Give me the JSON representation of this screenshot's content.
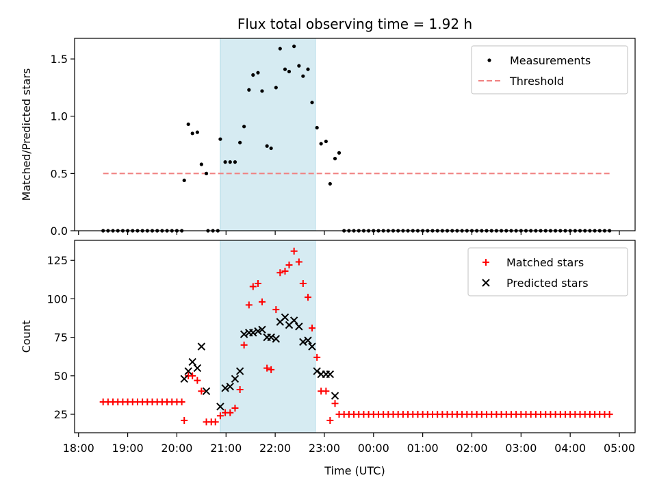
{
  "chart_data": [
    {
      "type": "scatter",
      "title": "Flux total observing time = 1.92 h",
      "xlabel": "",
      "ylabel": "Matched/Predicted stars",
      "xlim": [
        "18:00",
        "05:00"
      ],
      "ylim": [
        0,
        1.68
      ],
      "yticks": [
        0.0,
        0.5,
        1.0,
        1.5
      ],
      "ytick_labels": [
        "0.0",
        "0.5",
        "1.0",
        "1.5"
      ],
      "highlight_span": [
        "20:53",
        "22:49"
      ],
      "legend_position": "top-right",
      "legend": [
        {
          "label": "Measurements",
          "marker": "dot",
          "color": "#000000"
        },
        {
          "label": "Threshold",
          "marker": "dashed-line",
          "color": "#f08080"
        }
      ],
      "threshold": {
        "value": 0.5,
        "x_start": "18:30",
        "x_end": "04:48"
      },
      "series": [
        {
          "name": "Measurements",
          "color": "#000000",
          "points": [
            [
              "18:30",
              0
            ],
            [
              "18:36",
              0
            ],
            [
              "18:42",
              0
            ],
            [
              "18:48",
              0
            ],
            [
              "18:54",
              0
            ],
            [
              "19:00",
              0
            ],
            [
              "19:06",
              0
            ],
            [
              "19:12",
              0
            ],
            [
              "19:18",
              0
            ],
            [
              "19:24",
              0
            ],
            [
              "19:30",
              0
            ],
            [
              "19:36",
              0
            ],
            [
              "19:42",
              0
            ],
            [
              "19:48",
              0
            ],
            [
              "19:54",
              0
            ],
            [
              "20:00",
              0
            ],
            [
              "20:06",
              0
            ],
            [
              "20:09",
              0.44
            ],
            [
              "20:14",
              0.93
            ],
            [
              "20:19",
              0.85
            ],
            [
              "20:25",
              0.86
            ],
            [
              "20:30",
              0.58
            ],
            [
              "20:36",
              0.5
            ],
            [
              "20:38",
              0
            ],
            [
              "20:44",
              0
            ],
            [
              "20:50",
              0
            ],
            [
              "20:53",
              0.8
            ],
            [
              "20:59",
              0.6
            ],
            [
              "21:05",
              0.6
            ],
            [
              "21:11",
              0.6
            ],
            [
              "21:17",
              0.77
            ],
            [
              "21:22",
              0.91
            ],
            [
              "21:28",
              1.23
            ],
            [
              "21:33",
              1.36
            ],
            [
              "21:39",
              1.38
            ],
            [
              "21:44",
              1.22
            ],
            [
              "21:50",
              0.74
            ],
            [
              "21:55",
              0.72
            ],
            [
              "22:01",
              1.25
            ],
            [
              "22:06",
              1.59
            ],
            [
              "22:12",
              1.41
            ],
            [
              "22:17",
              1.39
            ],
            [
              "22:23",
              1.61
            ],
            [
              "22:29",
              1.44
            ],
            [
              "22:34",
              1.35
            ],
            [
              "22:40",
              1.41
            ],
            [
              "22:45",
              1.12
            ],
            [
              "22:51",
              0.9
            ],
            [
              "22:56",
              0.76
            ],
            [
              "23:02",
              0.78
            ],
            [
              "23:07",
              0.41
            ],
            [
              "23:13",
              0.63
            ],
            [
              "23:18",
              0.68
            ],
            [
              "23:24",
              0
            ],
            [
              "23:30",
              0
            ],
            [
              "23:36",
              0
            ],
            [
              "23:42",
              0
            ],
            [
              "23:48",
              0
            ],
            [
              "23:54",
              0
            ],
            [
              "00:00",
              0
            ],
            [
              "00:06",
              0
            ],
            [
              "00:12",
              0
            ],
            [
              "00:18",
              0
            ],
            [
              "00:24",
              0
            ],
            [
              "00:30",
              0
            ],
            [
              "00:36",
              0
            ],
            [
              "00:42",
              0
            ],
            [
              "00:48",
              0
            ],
            [
              "00:54",
              0
            ],
            [
              "01:00",
              0
            ],
            [
              "01:06",
              0
            ],
            [
              "01:12",
              0
            ],
            [
              "01:18",
              0
            ],
            [
              "01:24",
              0
            ],
            [
              "01:30",
              0
            ],
            [
              "01:36",
              0
            ],
            [
              "01:42",
              0
            ],
            [
              "01:48",
              0
            ],
            [
              "01:54",
              0
            ],
            [
              "02:00",
              0
            ],
            [
              "02:06",
              0
            ],
            [
              "02:12",
              0
            ],
            [
              "02:18",
              0
            ],
            [
              "02:24",
              0
            ],
            [
              "02:30",
              0
            ],
            [
              "02:36",
              0
            ],
            [
              "02:42",
              0
            ],
            [
              "02:48",
              0
            ],
            [
              "02:54",
              0
            ],
            [
              "03:00",
              0
            ],
            [
              "03:06",
              0
            ],
            [
              "03:12",
              0
            ],
            [
              "03:18",
              0
            ],
            [
              "03:24",
              0
            ],
            [
              "03:30",
              0
            ],
            [
              "03:36",
              0
            ],
            [
              "03:42",
              0
            ],
            [
              "03:48",
              0
            ],
            [
              "03:54",
              0
            ],
            [
              "04:00",
              0
            ],
            [
              "04:06",
              0
            ],
            [
              "04:12",
              0
            ],
            [
              "04:18",
              0
            ],
            [
              "04:24",
              0
            ],
            [
              "04:30",
              0
            ],
            [
              "04:36",
              0
            ],
            [
              "04:42",
              0
            ],
            [
              "04:48",
              0
            ]
          ]
        }
      ]
    },
    {
      "type": "scatter",
      "title": "",
      "xlabel": "Time (UTC)",
      "ylabel": "Count",
      "xlim": [
        "18:00",
        "05:00"
      ],
      "ylim": [
        13,
        138
      ],
      "yticks": [
        25,
        50,
        75,
        100,
        125
      ],
      "ytick_labels": [
        "25",
        "50",
        "75",
        "100",
        "125"
      ],
      "xticks": [
        "18:00",
        "19:00",
        "20:00",
        "21:00",
        "22:00",
        "23:00",
        "00:00",
        "01:00",
        "02:00",
        "03:00",
        "04:00",
        "05:00"
      ],
      "highlight_span": [
        "20:53",
        "22:49"
      ],
      "legend_position": "top-right",
      "legend": [
        {
          "label": "Matched stars",
          "marker": "plus",
          "color": "#ff0000"
        },
        {
          "label": "Predicted stars",
          "marker": "x",
          "color": "#000000"
        }
      ],
      "series": [
        {
          "name": "Matched stars",
          "color": "#ff0000",
          "marker": "plus",
          "points": [
            [
              "18:30",
              33
            ],
            [
              "18:36",
              33
            ],
            [
              "18:42",
              33
            ],
            [
              "18:48",
              33
            ],
            [
              "18:54",
              33
            ],
            [
              "19:00",
              33
            ],
            [
              "19:06",
              33
            ],
            [
              "19:12",
              33
            ],
            [
              "19:18",
              33
            ],
            [
              "19:24",
              33
            ],
            [
              "19:30",
              33
            ],
            [
              "19:36",
              33
            ],
            [
              "19:42",
              33
            ],
            [
              "19:48",
              33
            ],
            [
              "19:54",
              33
            ],
            [
              "20:00",
              33
            ],
            [
              "20:06",
              33
            ],
            [
              "20:09",
              21
            ],
            [
              "20:14",
              50
            ],
            [
              "20:19",
              50
            ],
            [
              "20:25",
              47
            ],
            [
              "20:30",
              40
            ],
            [
              "20:36",
              20
            ],
            [
              "20:42",
              20
            ],
            [
              "20:47",
              20
            ],
            [
              "20:53",
              24
            ],
            [
              "20:59",
              26
            ],
            [
              "21:05",
              26
            ],
            [
              "21:11",
              29
            ],
            [
              "21:17",
              41
            ],
            [
              "21:22",
              70
            ],
            [
              "21:28",
              96
            ],
            [
              "21:33",
              108
            ],
            [
              "21:39",
              110
            ],
            [
              "21:44",
              98
            ],
            [
              "21:50",
              55
            ],
            [
              "21:55",
              54
            ],
            [
              "22:01",
              93
            ],
            [
              "22:06",
              117
            ],
            [
              "22:12",
              118
            ],
            [
              "22:17",
              122
            ],
            [
              "22:23",
              131
            ],
            [
              "22:29",
              124
            ],
            [
              "22:34",
              110
            ],
            [
              "22:40",
              101
            ],
            [
              "22:45",
              81
            ],
            [
              "22:51",
              62
            ],
            [
              "22:56",
              40
            ],
            [
              "23:02",
              40
            ],
            [
              "23:07",
              21
            ],
            [
              "23:13",
              32
            ],
            [
              "23:18",
              25
            ],
            [
              "23:24",
              25
            ],
            [
              "23:30",
              25
            ],
            [
              "23:36",
              25
            ],
            [
              "23:42",
              25
            ],
            [
              "23:48",
              25
            ],
            [
              "23:54",
              25
            ],
            [
              "00:00",
              25
            ],
            [
              "00:06",
              25
            ],
            [
              "00:12",
              25
            ],
            [
              "00:18",
              25
            ],
            [
              "00:24",
              25
            ],
            [
              "00:30",
              25
            ],
            [
              "00:36",
              25
            ],
            [
              "00:42",
              25
            ],
            [
              "00:48",
              25
            ],
            [
              "00:54",
              25
            ],
            [
              "01:00",
              25
            ],
            [
              "01:06",
              25
            ],
            [
              "01:12",
              25
            ],
            [
              "01:18",
              25
            ],
            [
              "01:24",
              25
            ],
            [
              "01:30",
              25
            ],
            [
              "01:36",
              25
            ],
            [
              "01:42",
              25
            ],
            [
              "01:48",
              25
            ],
            [
              "01:54",
              25
            ],
            [
              "02:00",
              25
            ],
            [
              "02:06",
              25
            ],
            [
              "02:12",
              25
            ],
            [
              "02:18",
              25
            ],
            [
              "02:24",
              25
            ],
            [
              "02:30",
              25
            ],
            [
              "02:36",
              25
            ],
            [
              "02:42",
              25
            ],
            [
              "02:48",
              25
            ],
            [
              "02:54",
              25
            ],
            [
              "03:00",
              25
            ],
            [
              "03:06",
              25
            ],
            [
              "03:12",
              25
            ],
            [
              "03:18",
              25
            ],
            [
              "03:24",
              25
            ],
            [
              "03:30",
              25
            ],
            [
              "03:36",
              25
            ],
            [
              "03:42",
              25
            ],
            [
              "03:48",
              25
            ],
            [
              "03:54",
              25
            ],
            [
              "04:00",
              25
            ],
            [
              "04:06",
              25
            ],
            [
              "04:12",
              25
            ],
            [
              "04:18",
              25
            ],
            [
              "04:24",
              25
            ],
            [
              "04:30",
              25
            ],
            [
              "04:36",
              25
            ],
            [
              "04:42",
              25
            ],
            [
              "04:48",
              25
            ]
          ]
        },
        {
          "name": "Predicted stars",
          "color": "#000000",
          "marker": "x",
          "points": [
            [
              "20:09",
              48
            ],
            [
              "20:14",
              53
            ],
            [
              "20:19",
              59
            ],
            [
              "20:25",
              55
            ],
            [
              "20:30",
              69
            ],
            [
              "20:36",
              40
            ],
            [
              "20:53",
              30
            ],
            [
              "20:59",
              42
            ],
            [
              "21:05",
              43
            ],
            [
              "21:11",
              48
            ],
            [
              "21:17",
              53
            ],
            [
              "21:22",
              77
            ],
            [
              "21:28",
              78
            ],
            [
              "21:33",
              78
            ],
            [
              "21:39",
              79
            ],
            [
              "21:44",
              80
            ],
            [
              "21:50",
              75
            ],
            [
              "21:55",
              75
            ],
            [
              "22:01",
              74
            ],
            [
              "22:06",
              85
            ],
            [
              "22:12",
              88
            ],
            [
              "22:17",
              83
            ],
            [
              "22:23",
              86
            ],
            [
              "22:29",
              82
            ],
            [
              "22:34",
              72
            ],
            [
              "22:40",
              73
            ],
            [
              "22:45",
              69
            ],
            [
              "22:51",
              53
            ],
            [
              "22:56",
              51
            ],
            [
              "23:02",
              51
            ],
            [
              "23:07",
              51
            ],
            [
              "23:13",
              37
            ]
          ]
        }
      ]
    }
  ]
}
